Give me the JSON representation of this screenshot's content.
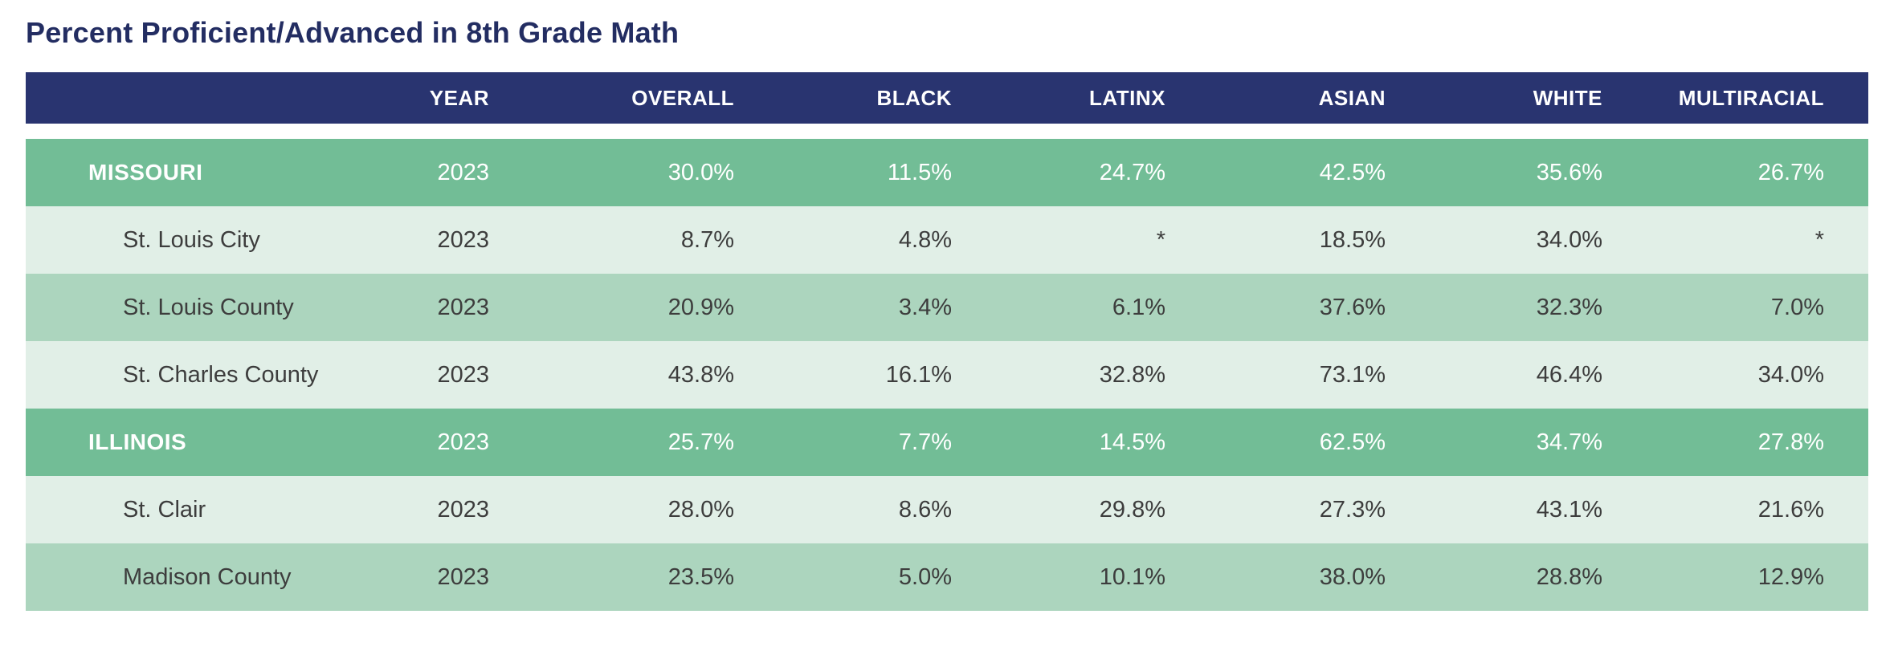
{
  "title": "Percent Proficient/Advanced in 8th Grade Math",
  "colors": {
    "title_text": "#232D62",
    "header_background": "#293470",
    "header_text": "#ffffff",
    "state_row_background": "#72BD96",
    "state_row_text": "#ffffff",
    "county_row_light_background": "#E1EFE7",
    "county_row_medium_background": "#ACD5BE",
    "county_row_text": "#3D3D3D"
  },
  "chart_data": {
    "type": "table",
    "title": "Percent Proficient/Advanced in 8th Grade Math",
    "columns": [
      "",
      "YEAR",
      "OVERALL",
      "BLACK",
      "LATINX",
      "ASIAN",
      "WHITE",
      "MULTIRACIAL"
    ],
    "rows": [
      {
        "label": "MISSOURI",
        "row_type": "state",
        "values": [
          "2023",
          "30.0%",
          "11.5%",
          "24.7%",
          "42.5%",
          "35.6%",
          "26.7%"
        ]
      },
      {
        "label": "St. Louis City",
        "row_type": "county-light",
        "values": [
          "2023",
          "8.7%",
          "4.8%",
          "*",
          "18.5%",
          "34.0%",
          "*"
        ]
      },
      {
        "label": "St. Louis County",
        "row_type": "county-medium",
        "values": [
          "2023",
          "20.9%",
          "3.4%",
          "6.1%",
          "37.6%",
          "32.3%",
          "7.0%"
        ]
      },
      {
        "label": "St. Charles County",
        "row_type": "county-light",
        "values": [
          "2023",
          "43.8%",
          "16.1%",
          "32.8%",
          "73.1%",
          "46.4%",
          "34.0%"
        ]
      },
      {
        "label": "ILLINOIS",
        "row_type": "state",
        "values": [
          "2023",
          "25.7%",
          "7.7%",
          "14.5%",
          "62.5%",
          "34.7%",
          "27.8%"
        ]
      },
      {
        "label": "St. Clair",
        "row_type": "county-light",
        "values": [
          "2023",
          "28.0%",
          "8.6%",
          "29.8%",
          "27.3%",
          "43.1%",
          "21.6%"
        ]
      },
      {
        "label": "Madison County",
        "row_type": "county-medium",
        "values": [
          "2023",
          "23.5%",
          "5.0%",
          "10.1%",
          "38.0%",
          "28.8%",
          "12.9%"
        ]
      }
    ]
  }
}
